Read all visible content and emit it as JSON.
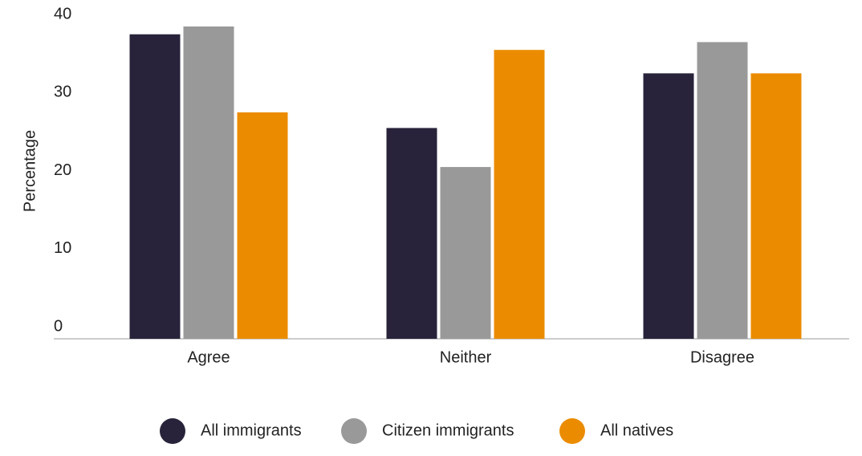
{
  "chart_data": {
    "type": "bar",
    "y_label": "Percentage",
    "categories": [
      "Agree",
      "Neither",
      "Disagree"
    ],
    "series": [
      {
        "name": "All immigrants",
        "color": "#28233a",
        "values": [
          39,
          27,
          34
        ]
      },
      {
        "name": "Citizen immigrants",
        "color": "#999999",
        "values": [
          40,
          22,
          38
        ]
      },
      {
        "name": "All natives",
        "color": "#eb8c00",
        "values": [
          29,
          37,
          34
        ]
      }
    ],
    "ylim": [
      0,
      40
    ],
    "yticks": [
      0,
      10,
      20,
      30,
      40
    ]
  }
}
